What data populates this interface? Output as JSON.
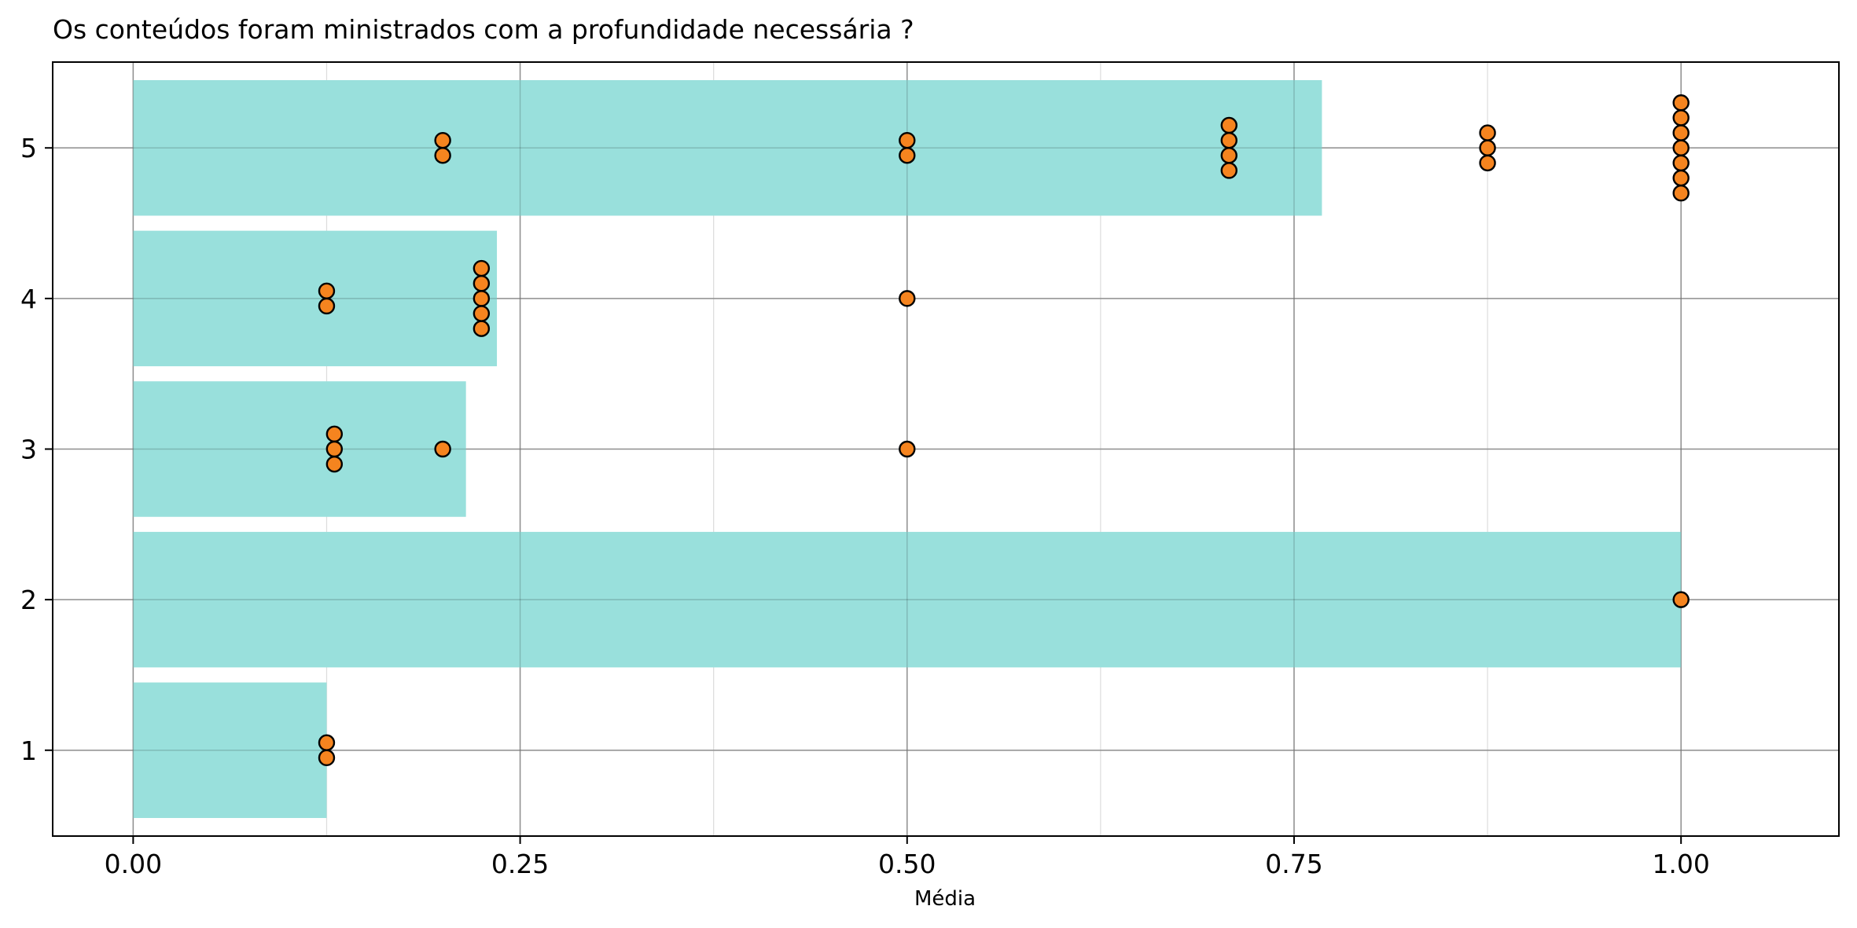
{
  "chart_data": {
    "type": "bar",
    "orientation": "horizontal",
    "title": "Os conteúdos foram ministrados com a profundidade necessária ?",
    "xlabel": "Média",
    "ylabel": "",
    "xlim": [
      -0.052,
      1.102
    ],
    "ylim": [
      0.43,
      5.57
    ],
    "xticks": [
      0.0,
      0.25,
      0.5,
      0.75,
      1.0
    ],
    "xtick_labels": [
      "0.00",
      "0.25",
      "0.50",
      "0.75",
      "1.00"
    ],
    "yticks": [
      1,
      2,
      3,
      4,
      5
    ],
    "ytick_labels": [
      "1",
      "2",
      "3",
      "4",
      "5"
    ],
    "grid": true,
    "bars": {
      "categories": [
        1,
        2,
        3,
        4,
        5
      ],
      "values": [
        0.125,
        1.0,
        0.215,
        0.235,
        0.768
      ],
      "color": "#99e0dc"
    },
    "points": {
      "color": "#f5841f",
      "edge_color": "#000000",
      "data": [
        {
          "x": 0.125,
          "y": 1.05
        },
        {
          "x": 0.125,
          "y": 0.95
        },
        {
          "x": 1.0,
          "y": 2.0
        },
        {
          "x": 0.13,
          "y": 3.1
        },
        {
          "x": 0.13,
          "y": 3.0
        },
        {
          "x": 0.13,
          "y": 2.9
        },
        {
          "x": 0.2,
          "y": 3.0
        },
        {
          "x": 0.5,
          "y": 3.0
        },
        {
          "x": 0.125,
          "y": 4.05
        },
        {
          "x": 0.125,
          "y": 3.95
        },
        {
          "x": 0.225,
          "y": 4.2
        },
        {
          "x": 0.225,
          "y": 4.1
        },
        {
          "x": 0.225,
          "y": 4.0
        },
        {
          "x": 0.225,
          "y": 3.9
        },
        {
          "x": 0.225,
          "y": 3.8
        },
        {
          "x": 0.5,
          "y": 4.0
        },
        {
          "x": 0.2,
          "y": 5.05
        },
        {
          "x": 0.2,
          "y": 4.95
        },
        {
          "x": 0.5,
          "y": 5.05
        },
        {
          "x": 0.5,
          "y": 4.95
        },
        {
          "x": 0.708,
          "y": 5.15
        },
        {
          "x": 0.708,
          "y": 5.05
        },
        {
          "x": 0.708,
          "y": 4.95
        },
        {
          "x": 0.708,
          "y": 4.85
        },
        {
          "x": 0.875,
          "y": 5.1
        },
        {
          "x": 0.875,
          "y": 5.0
        },
        {
          "x": 0.875,
          "y": 4.9
        },
        {
          "x": 1.0,
          "y": 5.3
        },
        {
          "x": 1.0,
          "y": 5.2
        },
        {
          "x": 1.0,
          "y": 5.1
        },
        {
          "x": 1.0,
          "y": 5.0
        },
        {
          "x": 1.0,
          "y": 4.9
        },
        {
          "x": 1.0,
          "y": 4.8
        },
        {
          "x": 1.0,
          "y": 4.7
        }
      ]
    }
  }
}
